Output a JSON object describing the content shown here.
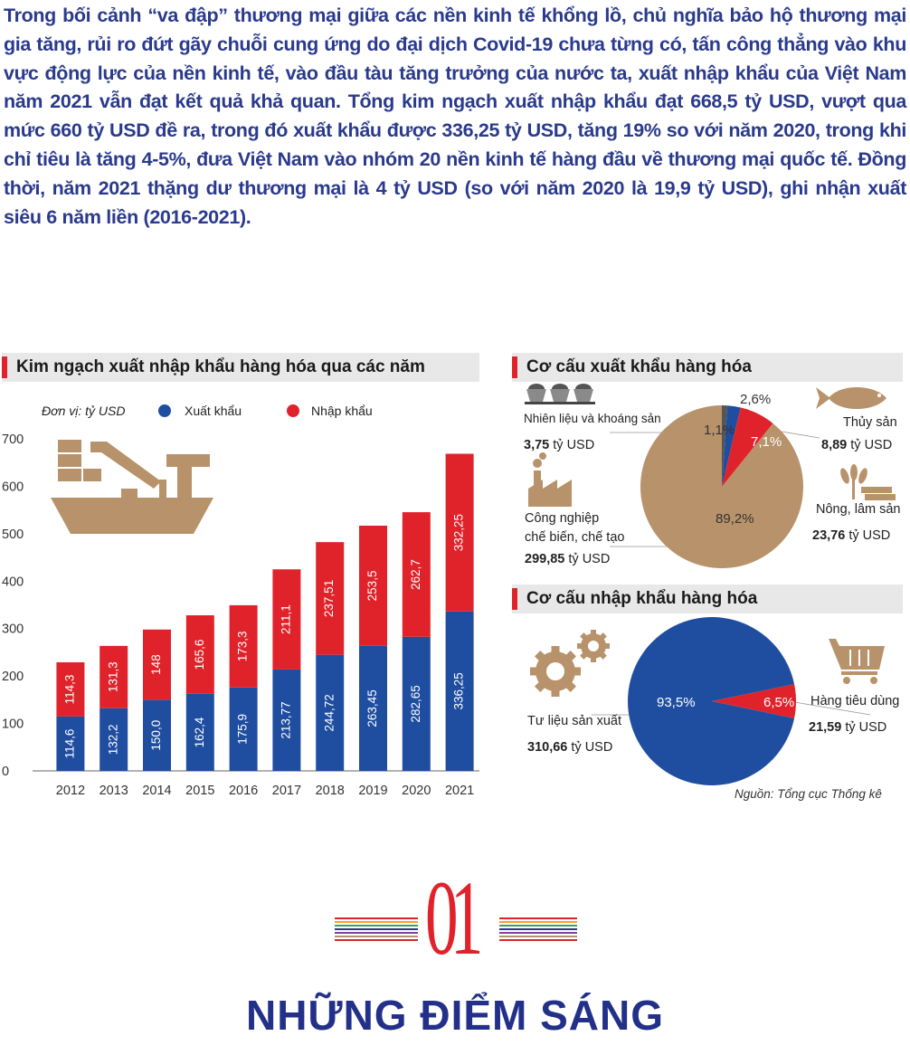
{
  "intro_text": "Trong bối cảnh “va đập” thương mại giữa các nền kinh tế khổng lồ, chủ nghĩa bảo hộ thương mại gia tăng, rủi ro đứt gãy chuỗi cung ứng do đại dịch Covid-19 chưa từng có, tấn công thẳng vào khu vực động lực của nền kinh tế, vào đầu tàu tăng trưởng của nước ta, xuất nhập khẩu của Việt Nam năm 2021 vẫn đạt kết quả khả quan. Tổng kim ngạch xuất nhập khẩu đạt 668,5 tỷ USD, vượt qua mức 660 tỷ USD đề ra, trong đó xuất khẩu được 336,25 tỷ USD, tăng 19% so với năm 2020, trong khi chỉ tiêu là tăng 4-5%, đưa Việt Nam vào nhóm 20 nền kinh tế hàng đầu về thương mại quốc tế. Đồng thời, năm 2021 thặng dư thương mại là 4 tỷ USD (so với năm 2020 là 19,9 tỷ USD), ghi nhận xuất siêu 6 năm liền (2016-2021).",
  "colors": {
    "export": "#1f4ea1",
    "import": "#e0232b",
    "tan": "#b8926a",
    "title_blue": "#2a3a8c"
  },
  "chart_data": [
    {
      "type": "bar",
      "title": "Kim ngạch xuất nhập khẩu hàng hóa qua các năm",
      "unit_label": "Đơn vị: tỷ USD",
      "categories": [
        "2012",
        "2013",
        "2014",
        "2015",
        "2016",
        "2017",
        "2018",
        "2019",
        "2020",
        "2021"
      ],
      "stacked": true,
      "ylim": [
        0,
        700
      ],
      "yticks": [
        0,
        100,
        200,
        300,
        400,
        500,
        600,
        700
      ],
      "series": [
        {
          "name": "Xuất khẩu",
          "color": "#1f4ea1",
          "values": [
            114.6,
            132.2,
            150.0,
            162.4,
            175.9,
            213.77,
            244.72,
            263.45,
            282.65,
            336.25
          ],
          "labels": [
            "114,6",
            "132,2",
            "150,0",
            "162,4",
            "175,9",
            "213,77",
            "244,72",
            "263,45",
            "282,65",
            "336,25"
          ]
        },
        {
          "name": "Nhập khẩu",
          "color": "#e0232b",
          "values": [
            114.3,
            131.3,
            148,
            165.6,
            173.3,
            211.1,
            237.51,
            253.5,
            262.7,
            332.25
          ],
          "labels": [
            "114,3",
            "131,3",
            "148",
            "165,6",
            "173,3",
            "211,1",
            "237,51",
            "253,5",
            "262,7",
            "332,25"
          ]
        }
      ],
      "legend": "top"
    },
    {
      "type": "pie",
      "title": "Cơ cấu xuất khẩu hàng hóa",
      "slices": [
        {
          "name": "Công nghiệp chế biến, chế tạo",
          "percent": 89.2,
          "percent_label": "89,2%",
          "value_label": "299,85",
          "color": "#b8926a"
        },
        {
          "name": "Nhiên liệu và khoáng sản",
          "percent": 1.1,
          "percent_label": "1,1%",
          "value_label": "3,75",
          "color": "#555555"
        },
        {
          "name": "Thủy sản",
          "percent": 2.6,
          "percent_label": "2,6%",
          "value_label": "8,89",
          "color": "#1f4ea1"
        },
        {
          "name": "Nông, lâm sản",
          "percent": 7.1,
          "percent_label": "7,1%",
          "value_label": "23,76",
          "color": "#e0232b"
        }
      ]
    },
    {
      "type": "pie",
      "title": "Cơ cấu nhập khẩu hàng hóa",
      "slices": [
        {
          "name": "Tư liệu sản xuất",
          "percent": 93.5,
          "percent_label": "93,5%",
          "value_label": "310,66",
          "color": "#1f4ea1"
        },
        {
          "name": "Hàng tiêu dùng",
          "percent": 6.5,
          "percent_label": "6,5%",
          "value_label": "21,59",
          "color": "#e0232b"
        }
      ]
    }
  ],
  "labels": {
    "unit": "tỷ USD",
    "pie1": {
      "mineral_name": "Nhiên liệu và khoáng sản",
      "fish_name": "Thủy sản",
      "industry_name_1": "Công nghiệp",
      "industry_name_2": "chế biến, chế tạo",
      "agri_name": "Nông, lâm sản"
    },
    "pie2": {
      "production_name": "Tư liệu sản xuất",
      "consumer_name": "Hàng tiêu dùng"
    }
  },
  "source": "Nguồn: Tổng cục Thống kê",
  "section": {
    "number": "01",
    "title": "NHỮNG ĐIỂM SÁNG"
  },
  "icons": [
    "ship-icon",
    "coal-carts-icon",
    "factory-icon",
    "fish-icon",
    "wheat-wood-icon",
    "gears-icon",
    "cart-icon"
  ]
}
